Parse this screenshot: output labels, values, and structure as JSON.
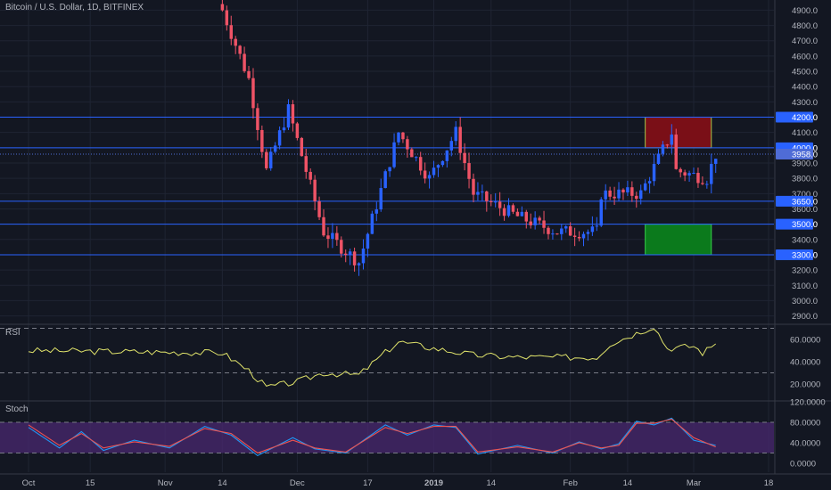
{
  "header": {
    "title": "Bitcoin / U.S. Dollar, 1D, BITFINEX"
  },
  "colors": {
    "background": "#131722",
    "grid": "#1f2433",
    "axis_text": "#b2b5be",
    "up": "#2962ff",
    "down": "#ef5366",
    "level_line": "#2962ff",
    "rsi_line": "#e0e36b",
    "stoch_k": "#2196f3",
    "stoch_d": "#ef5350",
    "sell_zone": "#7a0f17",
    "buy_zone": "#0b7a1c",
    "stoch_band": "#4a2870"
  },
  "panes": {
    "rsi_label": "RSI",
    "stoch_label": "Stoch"
  },
  "chart_data": [
    {
      "type": "candlestick",
      "title": "Bitcoin / U.S. Dollar, 1D, BITFINEX",
      "x_axis": {
        "start": "2018-10-01",
        "end": "2019-03-18",
        "tick_labels": [
          {
            "date": "2018-10-01",
            "label": "Oct"
          },
          {
            "date": "2018-10-15",
            "label": "15"
          },
          {
            "date": "2018-11-01",
            "label": "Nov"
          },
          {
            "date": "2018-11-14",
            "label": "14"
          },
          {
            "date": "2018-12-01",
            "label": "Dec"
          },
          {
            "date": "2018-12-17",
            "label": "17"
          },
          {
            "date": "2019-01-01",
            "label": "2019"
          },
          {
            "date": "2019-01-14",
            "label": "14"
          },
          {
            "date": "2019-02-01",
            "label": "Feb"
          },
          {
            "date": "2019-02-14",
            "label": "14"
          },
          {
            "date": "2019-03-01",
            "label": "Mar"
          },
          {
            "date": "2019-03-18",
            "label": "18"
          }
        ]
      },
      "y_axis": {
        "range": [
          2800,
          5000
        ],
        "ticks": [
          "2900.0",
          "3000.0",
          "3100.0",
          "3200.0",
          "3300.0",
          "3400.0",
          "3500.0",
          "3600.0",
          "3700.0",
          "3800.0",
          "3900.0",
          "4000.0",
          "4100.0",
          "4200.0",
          "4300.0",
          "4400.0",
          "4500.0",
          "4600.0",
          "4700.0",
          "4800.0",
          "4900.0"
        ]
      },
      "horizontal_levels": [
        {
          "price": 4200,
          "label": "4200.0"
        },
        {
          "price": 4000,
          "label": "4000.0"
        },
        {
          "price": 3650,
          "label": "3650.0"
        },
        {
          "price": 3500,
          "label": "3500.0"
        },
        {
          "price": 3300,
          "label": "3300.0"
        }
      ],
      "last_price": {
        "price": 3958,
        "label": "3958.0"
      },
      "zones": [
        {
          "type": "sell",
          "from": "2019-02-18",
          "to": "2019-03-05",
          "low": 4000,
          "high": 4200
        },
        {
          "type": "buy",
          "from": "2019-02-18",
          "to": "2019-03-05",
          "low": 3300,
          "high": 3500
        }
      ],
      "key_points": [
        {
          "date": "2018-11-14",
          "close": 4900
        },
        {
          "date": "2018-11-20",
          "close": 4450
        },
        {
          "date": "2018-11-24",
          "close": 3850
        },
        {
          "date": "2018-11-29",
          "close": 4250
        },
        {
          "date": "2018-12-07",
          "close": 3450
        },
        {
          "date": "2018-12-15",
          "close": 3250
        },
        {
          "date": "2018-12-24",
          "close": 4100
        },
        {
          "date": "2018-12-31",
          "close": 3800
        },
        {
          "date": "2019-01-06",
          "close": 4100
        },
        {
          "date": "2019-01-10",
          "close": 3700
        },
        {
          "date": "2019-01-20",
          "close": 3550
        },
        {
          "date": "2019-01-29",
          "close": 3450
        },
        {
          "date": "2019-02-07",
          "close": 3450
        },
        {
          "date": "2019-02-08",
          "close": 3700
        },
        {
          "date": "2019-02-17",
          "close": 3700
        },
        {
          "date": "2019-02-24",
          "close": 4100
        },
        {
          "date": "2019-02-25",
          "close": 3850
        },
        {
          "date": "2019-03-04",
          "close": 3800
        },
        {
          "date": "2019-03-06",
          "close": 3958
        }
      ]
    },
    {
      "type": "line",
      "name": "RSI",
      "y_axis": {
        "range": [
          10,
          80
        ],
        "ticks": [
          "20.0000",
          "40.0000",
          "60.0000"
        ]
      },
      "bands": [
        30,
        70
      ],
      "key_points": [
        {
          "date": "2018-10-01",
          "value": 50
        },
        {
          "date": "2018-11-14",
          "value": 48
        },
        {
          "date": "2018-11-20",
          "value": 32
        },
        {
          "date": "2018-11-24",
          "value": 17
        },
        {
          "date": "2018-12-01",
          "value": 22
        },
        {
          "date": "2018-12-07",
          "value": 30
        },
        {
          "date": "2018-12-15",
          "value": 28
        },
        {
          "date": "2018-12-20",
          "value": 45
        },
        {
          "date": "2018-12-24",
          "value": 58
        },
        {
          "date": "2019-01-01",
          "value": 52
        },
        {
          "date": "2019-01-10",
          "value": 46
        },
        {
          "date": "2019-01-20",
          "value": 44
        },
        {
          "date": "2019-02-07",
          "value": 44
        },
        {
          "date": "2019-02-10",
          "value": 56
        },
        {
          "date": "2019-02-20",
          "value": 72
        },
        {
          "date": "2019-02-23",
          "value": 52
        },
        {
          "date": "2019-03-01",
          "value": 54
        },
        {
          "date": "2019-03-03",
          "value": 48
        },
        {
          "date": "2019-03-06",
          "value": 56
        }
      ]
    },
    {
      "type": "line",
      "name": "Stoch",
      "y_axis": {
        "range": [
          -10,
          120
        ],
        "ticks": [
          "0.0000",
          "40.0000",
          "80.0000",
          "120.0000"
        ]
      },
      "bands": [
        20,
        80
      ],
      "series": [
        {
          "key_points": [
            {
              "date": "2018-10-01",
              "value": 70
            },
            {
              "date": "2018-10-08",
              "value": 30
            },
            {
              "date": "2018-10-13",
              "value": 62
            },
            {
              "date": "2018-10-18",
              "value": 25
            },
            {
              "date": "2018-10-25",
              "value": 45
            },
            {
              "date": "2018-11-02",
              "value": 30
            },
            {
              "date": "2018-11-10",
              "value": 72
            },
            {
              "date": "2018-11-16",
              "value": 55
            },
            {
              "date": "2018-11-22",
              "value": 15
            },
            {
              "date": "2018-11-30",
              "value": 50
            },
            {
              "date": "2018-12-05",
              "value": 28
            },
            {
              "date": "2018-12-12",
              "value": 20
            },
            {
              "date": "2018-12-21",
              "value": 75
            },
            {
              "date": "2018-12-26",
              "value": 55
            },
            {
              "date": "2019-01-01",
              "value": 75
            },
            {
              "date": "2019-01-06",
              "value": 70
            },
            {
              "date": "2019-01-11",
              "value": 18
            },
            {
              "date": "2019-01-20",
              "value": 35
            },
            {
              "date": "2019-01-28",
              "value": 20
            },
            {
              "date": "2019-02-03",
              "value": 42
            },
            {
              "date": "2019-02-08",
              "value": 28
            },
            {
              "date": "2019-02-12",
              "value": 38
            },
            {
              "date": "2019-02-16",
              "value": 82
            },
            {
              "date": "2019-02-20",
              "value": 75
            },
            {
              "date": "2019-02-24",
              "value": 88
            },
            {
              "date": "2019-03-01",
              "value": 45
            },
            {
              "date": "2019-03-06",
              "value": 35
            }
          ]
        },
        {
          "key_points": [
            {
              "date": "2018-10-01",
              "value": 75
            },
            {
              "date": "2018-10-08",
              "value": 35
            },
            {
              "date": "2018-10-13",
              "value": 58
            },
            {
              "date": "2018-10-18",
              "value": 30
            },
            {
              "date": "2018-10-25",
              "value": 42
            },
            {
              "date": "2018-11-02",
              "value": 33
            },
            {
              "date": "2018-11-10",
              "value": 68
            },
            {
              "date": "2018-11-16",
              "value": 58
            },
            {
              "date": "2018-11-22",
              "value": 20
            },
            {
              "date": "2018-11-30",
              "value": 45
            },
            {
              "date": "2018-12-05",
              "value": 30
            },
            {
              "date": "2018-12-12",
              "value": 22
            },
            {
              "date": "2018-12-21",
              "value": 70
            },
            {
              "date": "2018-12-26",
              "value": 58
            },
            {
              "date": "2019-01-01",
              "value": 72
            },
            {
              "date": "2019-01-06",
              "value": 72
            },
            {
              "date": "2019-01-11",
              "value": 22
            },
            {
              "date": "2019-01-20",
              "value": 32
            },
            {
              "date": "2019-01-28",
              "value": 22
            },
            {
              "date": "2019-02-03",
              "value": 40
            },
            {
              "date": "2019-02-08",
              "value": 30
            },
            {
              "date": "2019-02-12",
              "value": 35
            },
            {
              "date": "2019-02-16",
              "value": 78
            },
            {
              "date": "2019-02-20",
              "value": 78
            },
            {
              "date": "2019-02-24",
              "value": 86
            },
            {
              "date": "2019-03-01",
              "value": 50
            },
            {
              "date": "2019-03-06",
              "value": 32
            }
          ]
        }
      ]
    }
  ]
}
